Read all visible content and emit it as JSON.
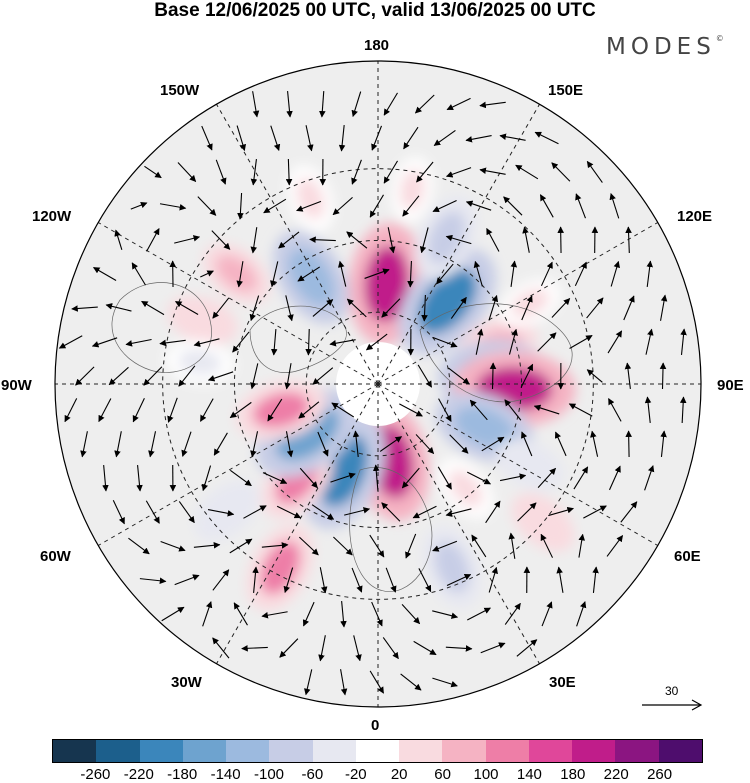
{
  "title": "Base 12/06/2025 00 UTC, valid 13/06/2025 00 UTC",
  "brand": {
    "name": "MODES",
    "mark": "©"
  },
  "longitude_labels": {
    "north": "180",
    "south": "0",
    "west": "90W",
    "east": "90E",
    "n150w": "150W",
    "n150e": "150E",
    "n120w": "120W",
    "n120e": "120E",
    "s60w": "60W",
    "s60e": "60E",
    "s30w": "30W",
    "s30e": "30E"
  },
  "reference_vector": {
    "value": "30"
  },
  "colorbar": {
    "colors": [
      "#16354f",
      "#1c5f8c",
      "#3b86bb",
      "#6ea3cf",
      "#9cbadf",
      "#c7cde6",
      "#e7e8f1",
      "#ffffff",
      "#f9dbe0",
      "#f5b3c3",
      "#ee7ea7",
      "#e0479a",
      "#c01d8a",
      "#8b1581",
      "#4e0d6d"
    ],
    "ticks": [
      "-260",
      "-220",
      "-180",
      "-140",
      "-100",
      "-60",
      "-20",
      "20",
      "60",
      "100",
      "140",
      "180",
      "220",
      "260"
    ]
  },
  "anomaly_centres": [
    {
      "lon": 175,
      "lat": 62,
      "value": 200
    },
    {
      "lon": 140,
      "lat": 60,
      "value": -200
    },
    {
      "lon": 155,
      "lat": 45,
      "value": -100
    },
    {
      "lon": -148,
      "lat": 55,
      "value": -140
    },
    {
      "lon": -160,
      "lat": 35,
      "value": 40
    },
    {
      "lon": 108,
      "lat": 55,
      "value": 80
    },
    {
      "lon": 118,
      "lat": 42,
      "value": 30
    },
    {
      "lon": 95,
      "lat": 58,
      "value": -160
    },
    {
      "lon": 88,
      "lat": 52,
      "value": 200
    },
    {
      "lon": 68,
      "lat": 58,
      "value": -140
    },
    {
      "lon": 62,
      "lat": 42,
      "value": -50
    },
    {
      "lon": 40,
      "lat": 52,
      "value": 40
    },
    {
      "lon": 10,
      "lat": 68,
      "value": 190
    },
    {
      "lon": -22,
      "lat": 64,
      "value": -200
    },
    {
      "lon": -40,
      "lat": 55,
      "value": 100
    },
    {
      "lon": -55,
      "lat": 66,
      "value": -180
    },
    {
      "lon": -75,
      "lat": 62,
      "value": 110
    },
    {
      "lon": -110,
      "lat": 38,
      "value": 50
    },
    {
      "lon": -97,
      "lat": 40,
      "value": -40
    },
    {
      "lon": -28,
      "lat": 32,
      "value": 110
    },
    {
      "lon": -50,
      "lat": 35,
      "value": -60
    },
    {
      "lon": 22,
      "lat": 35,
      "value": -90
    },
    {
      "lon": 50,
      "lat": 30,
      "value": 50
    },
    {
      "lon": -128,
      "lat": 40,
      "value": 60
    },
    {
      "lon": 170,
      "lat": 35,
      "value": 30
    }
  ]
}
